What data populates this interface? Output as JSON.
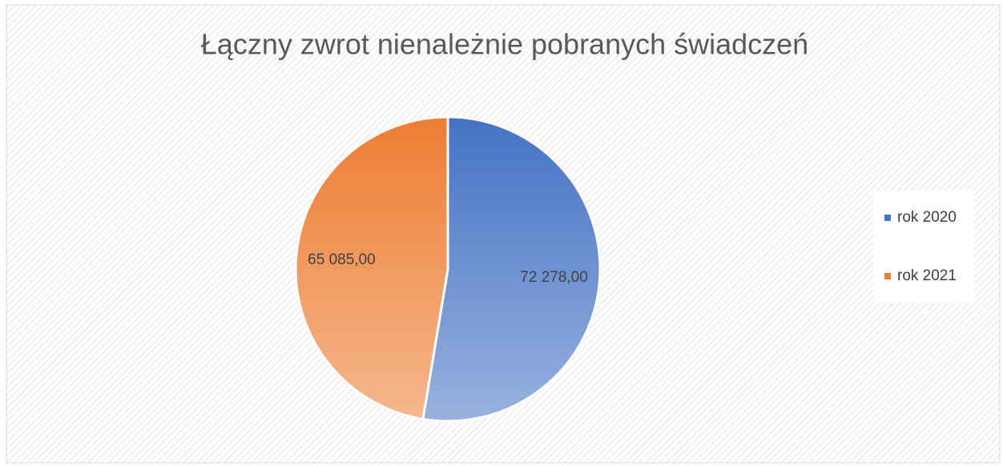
{
  "chart_data": {
    "type": "pie",
    "title": "Łączny zwrot nienależnie pobranych świadczeń",
    "categories": [
      "rok 2020",
      "rok 2021"
    ],
    "values": [
      72278,
      65085
    ],
    "value_labels": [
      "72 278,00",
      "65 085,00"
    ],
    "colors": [
      "#4472c4",
      "#ed7d31"
    ],
    "legend": "right"
  }
}
